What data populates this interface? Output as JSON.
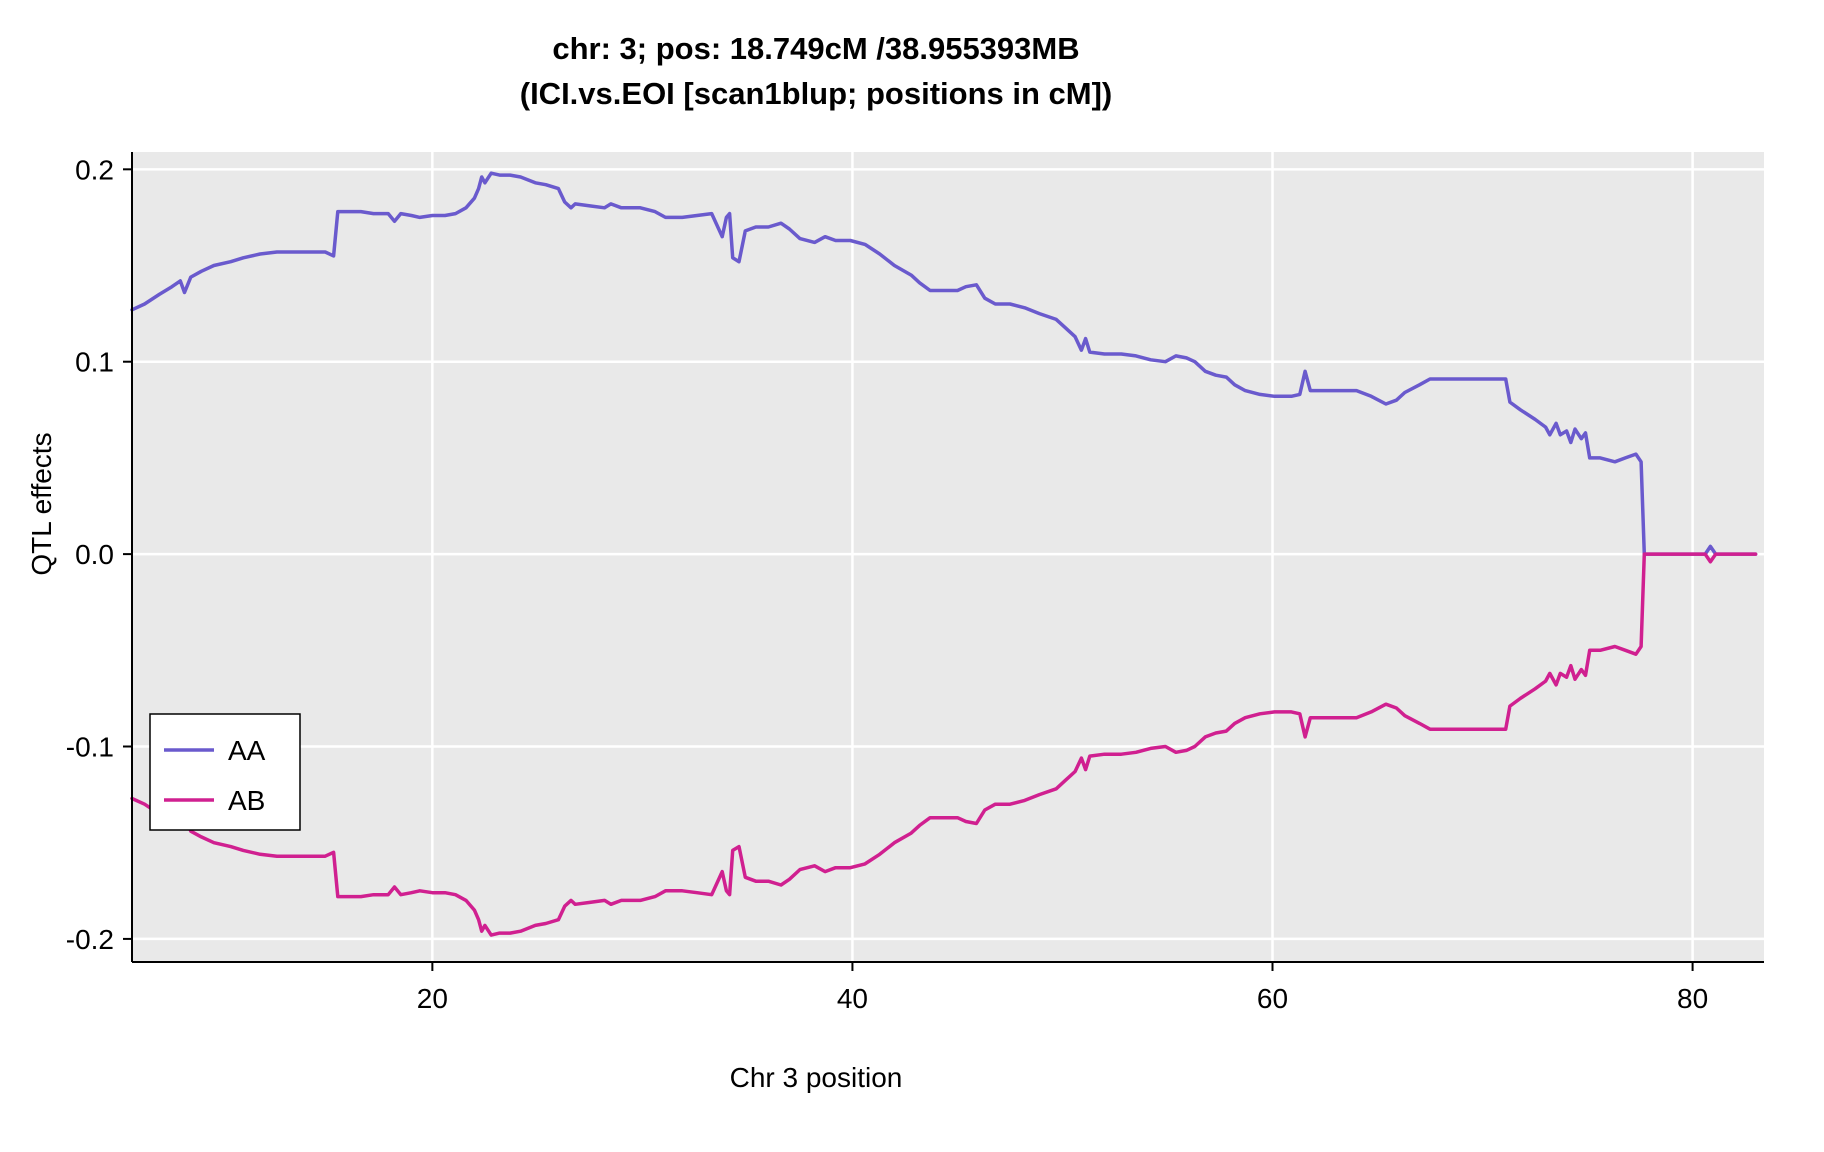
{
  "title": {
    "line1": "chr: 3; pos: 18.749cM /38.955393MB",
    "line2": "(ICI.vs.EOI [scan1blup; positions in cM])"
  },
  "axes": {
    "x_label": "Chr 3 position",
    "y_label": "QTL effects"
  },
  "legend": {
    "entries": [
      {
        "label": "AA",
        "color": "#6A5ACD"
      },
      {
        "label": "AB",
        "color": "#D02090"
      }
    ]
  },
  "chart_data": {
    "type": "line",
    "title": "chr: 3; pos: 18.749cM /38.955393MB (ICI.vs.EOI [scan1blup; positions in cM])",
    "xlabel": "Chr 3 position",
    "ylabel": "QTL effects",
    "xlim": [
      5.7,
      83.4
    ],
    "ylim": [
      -0.212,
      0.209
    ],
    "x_ticks": [
      20,
      40,
      60,
      80
    ],
    "x_tick_labels": [
      "20",
      "40",
      "60",
      "80"
    ],
    "y_ticks": [
      -0.2,
      -0.1,
      0,
      0.1,
      0.2
    ],
    "y_tick_labels": [
      "-0.2",
      "-0.1",
      "0.0",
      "0.1",
      "0.2"
    ],
    "grid": "white major gridlines on gray panel",
    "legend_position": "bottom-left",
    "colors": {
      "panel_bg": "#E9E9E9",
      "grid": "#FFFFFF",
      "axis": "#000000"
    },
    "x": [
      5.7,
      6.3,
      7,
      7.6,
      8,
      8.2,
      8.5,
      9,
      9.6,
      10.4,
      11,
      11.8,
      12.6,
      13.4,
      14.2,
      14.9,
      15.3,
      15.5,
      16,
      16.6,
      17.2,
      17.9,
      18.2,
      18.5,
      19,
      19.4,
      20,
      20.6,
      21.1,
      21.6,
      22,
      22.2,
      22.35,
      22.5,
      22.8,
      23.2,
      23.7,
      24.2,
      24.9,
      25.4,
      26,
      26.3,
      26.6,
      26.8,
      27.5,
      28.2,
      28.5,
      29,
      29.9,
      30.6,
      31.1,
      31.9,
      32.6,
      33.3,
      33.8,
      34,
      34.15,
      34.3,
      34.6,
      34.9,
      35.4,
      36,
      36.6,
      37,
      37.5,
      38.2,
      38.7,
      39.2,
      39.9,
      40.6,
      41.3,
      42,
      42.8,
      43.2,
      43.7,
      44.4,
      45,
      45.4,
      45.9,
      46.3,
      46.8,
      47.5,
      48.2,
      48.9,
      49.7,
      50.1,
      50.6,
      50.9,
      51.1,
      51.3,
      52,
      52.8,
      53.5,
      54.2,
      54.9,
      55.4,
      55.9,
      56.3,
      56.8,
      57.3,
      57.8,
      58.2,
      58.7,
      59.4,
      60.1,
      60.9,
      61.3,
      61.55,
      61.8,
      62.5,
      63.2,
      64,
      64.7,
      65.4,
      65.9,
      66.3,
      67,
      67.5,
      68.5,
      69.4,
      70.4,
      71.1,
      71.3,
      71.8,
      72.5,
      73,
      73.2,
      73.5,
      73.7,
      74,
      74.2,
      74.4,
      74.7,
      74.9,
      75.1,
      75.6,
      76.3,
      76.8,
      77.3,
      77.55,
      77.7,
      78.3,
      79,
      79.8,
      80.6,
      80.85,
      81.1,
      82,
      83
    ],
    "series": [
      {
        "name": "AA",
        "color": "#6A5ACD",
        "y": [
          0.127,
          0.13,
          0.135,
          0.139,
          0.142,
          0.136,
          0.144,
          0.147,
          0.15,
          0.152,
          0.154,
          0.156,
          0.157,
          0.157,
          0.157,
          0.157,
          0.155,
          0.178,
          0.178,
          0.178,
          0.177,
          0.177,
          0.173,
          0.177,
          0.176,
          0.175,
          0.176,
          0.176,
          0.177,
          0.18,
          0.185,
          0.19,
          0.196,
          0.193,
          0.198,
          0.197,
          0.197,
          0.196,
          0.193,
          0.192,
          0.19,
          0.183,
          0.18,
          0.182,
          0.181,
          0.18,
          0.182,
          0.18,
          0.18,
          0.178,
          0.175,
          0.175,
          0.176,
          0.177,
          0.165,
          0.175,
          0.177,
          0.154,
          0.152,
          0.168,
          0.17,
          0.17,
          0.172,
          0.169,
          0.164,
          0.162,
          0.165,
          0.163,
          0.163,
          0.161,
          0.156,
          0.15,
          0.145,
          0.141,
          0.137,
          0.137,
          0.137,
          0.139,
          0.14,
          0.133,
          0.13,
          0.13,
          0.128,
          0.125,
          0.122,
          0.118,
          0.113,
          0.106,
          0.112,
          0.105,
          0.104,
          0.104,
          0.103,
          0.101,
          0.1,
          0.103,
          0.102,
          0.1,
          0.095,
          0.093,
          0.092,
          0.088,
          0.085,
          0.083,
          0.082,
          0.082,
          0.083,
          0.095,
          0.085,
          0.085,
          0.085,
          0.085,
          0.082,
          0.078,
          0.08,
          0.084,
          0.088,
          0.091,
          0.091,
          0.091,
          0.091,
          0.091,
          0.079,
          0.075,
          0.07,
          0.066,
          0.062,
          0.068,
          0.062,
          0.064,
          0.058,
          0.065,
          0.06,
          0.063,
          0.05,
          0.05,
          0.048,
          0.05,
          0.052,
          0.048,
          0,
          0,
          0,
          0,
          0,
          0.004,
          0,
          0,
          0
        ]
      },
      {
        "name": "AB",
        "color": "#D02090",
        "y": [
          -0.127,
          -0.13,
          -0.135,
          -0.139,
          -0.142,
          -0.136,
          -0.144,
          -0.147,
          -0.15,
          -0.152,
          -0.154,
          -0.156,
          -0.157,
          -0.157,
          -0.157,
          -0.157,
          -0.155,
          -0.178,
          -0.178,
          -0.178,
          -0.177,
          -0.177,
          -0.173,
          -0.177,
          -0.176,
          -0.175,
          -0.176,
          -0.176,
          -0.177,
          -0.18,
          -0.185,
          -0.19,
          -0.196,
          -0.193,
          -0.198,
          -0.197,
          -0.197,
          -0.196,
          -0.193,
          -0.192,
          -0.19,
          -0.183,
          -0.18,
          -0.182,
          -0.181,
          -0.18,
          -0.182,
          -0.18,
          -0.18,
          -0.178,
          -0.175,
          -0.175,
          -0.176,
          -0.177,
          -0.165,
          -0.175,
          -0.177,
          -0.154,
          -0.152,
          -0.168,
          -0.17,
          -0.17,
          -0.172,
          -0.169,
          -0.164,
          -0.162,
          -0.165,
          -0.163,
          -0.163,
          -0.161,
          -0.156,
          -0.15,
          -0.145,
          -0.141,
          -0.137,
          -0.137,
          -0.137,
          -0.139,
          -0.14,
          -0.133,
          -0.13,
          -0.13,
          -0.128,
          -0.125,
          -0.122,
          -0.118,
          -0.113,
          -0.106,
          -0.112,
          -0.105,
          -0.104,
          -0.104,
          -0.103,
          -0.101,
          -0.1,
          -0.103,
          -0.102,
          -0.1,
          -0.095,
          -0.093,
          -0.092,
          -0.088,
          -0.085,
          -0.083,
          -0.082,
          -0.082,
          -0.083,
          -0.095,
          -0.085,
          -0.085,
          -0.085,
          -0.085,
          -0.082,
          -0.078,
          -0.08,
          -0.084,
          -0.088,
          -0.091,
          -0.091,
          -0.091,
          -0.091,
          -0.091,
          -0.079,
          -0.075,
          -0.07,
          -0.066,
          -0.062,
          -0.068,
          -0.062,
          -0.064,
          -0.058,
          -0.065,
          -0.06,
          -0.063,
          -0.05,
          -0.05,
          -0.048,
          -0.05,
          -0.052,
          -0.048,
          0,
          0,
          0,
          0,
          0,
          -0.004,
          0,
          0,
          0
        ]
      }
    ]
  }
}
